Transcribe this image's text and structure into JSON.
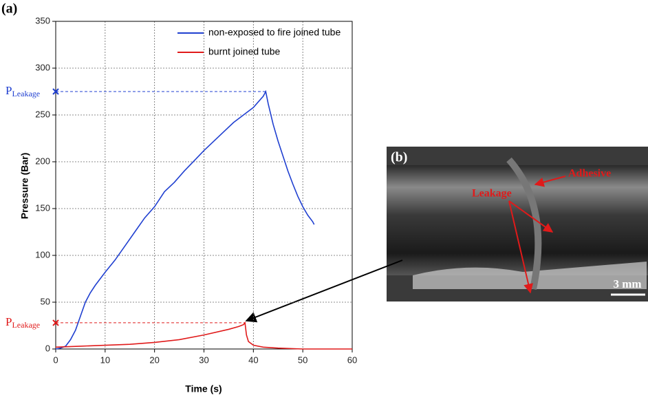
{
  "chart_data": {
    "type": "line",
    "panel_label": "(a)",
    "x_label": "Time (s)",
    "y_label": "Pressure (Bar)",
    "xlim": [
      0,
      60
    ],
    "xticks": [
      0,
      10,
      20,
      30,
      40,
      50,
      60
    ],
    "ylim": [
      0,
      350
    ],
    "yticks": [
      0,
      50,
      100,
      150,
      200,
      250,
      300,
      350
    ],
    "grid": true,
    "legend": "upper right",
    "series": [
      {
        "name": "non-exposed to fire joined tube",
        "color": "#1f3fd0",
        "x": [
          0,
          1,
          2,
          3,
          4,
          5,
          6,
          7,
          8,
          9,
          10,
          12,
          14,
          16,
          18,
          20,
          21,
          22,
          24,
          26,
          28,
          30,
          32,
          34,
          36,
          38,
          40,
          41,
          42,
          42.5,
          43,
          44,
          45,
          46,
          47,
          48,
          49,
          50,
          51,
          52,
          52.3
        ],
        "values": [
          0,
          1,
          3,
          10,
          20,
          35,
          50,
          60,
          68,
          75,
          82,
          95,
          110,
          125,
          140,
          152,
          160,
          168,
          178,
          190,
          201,
          212,
          222,
          232,
          242,
          250,
          258,
          264,
          270,
          275,
          262,
          240,
          222,
          206,
          190,
          176,
          163,
          152,
          143,
          136,
          133
        ]
      },
      {
        "name": "burnt joined tube",
        "color": "#e01a1a",
        "x": [
          0,
          5,
          10,
          15,
          20,
          25,
          30,
          35,
          37,
          38,
          38.3,
          38.6,
          39,
          40,
          42,
          45,
          50,
          55,
          60
        ],
        "values": [
          2,
          3,
          4,
          5,
          7,
          10,
          15,
          21,
          24,
          26,
          28,
          15,
          8,
          4,
          2,
          1,
          0,
          0,
          0
        ]
      }
    ],
    "leakage_markers": [
      {
        "text": "P",
        "subscript": "Leakage",
        "value": 275,
        "time": 42.5,
        "color": "#1f3fd0"
      },
      {
        "text": "P",
        "subscript": "Leakage",
        "value": 28,
        "time": 38.3,
        "color": "#e01a1a"
      }
    ]
  },
  "photo": {
    "panel_label": "(b)",
    "labels": [
      "Leakage",
      "Adhesive"
    ],
    "scale_bar": "3 mm"
  }
}
